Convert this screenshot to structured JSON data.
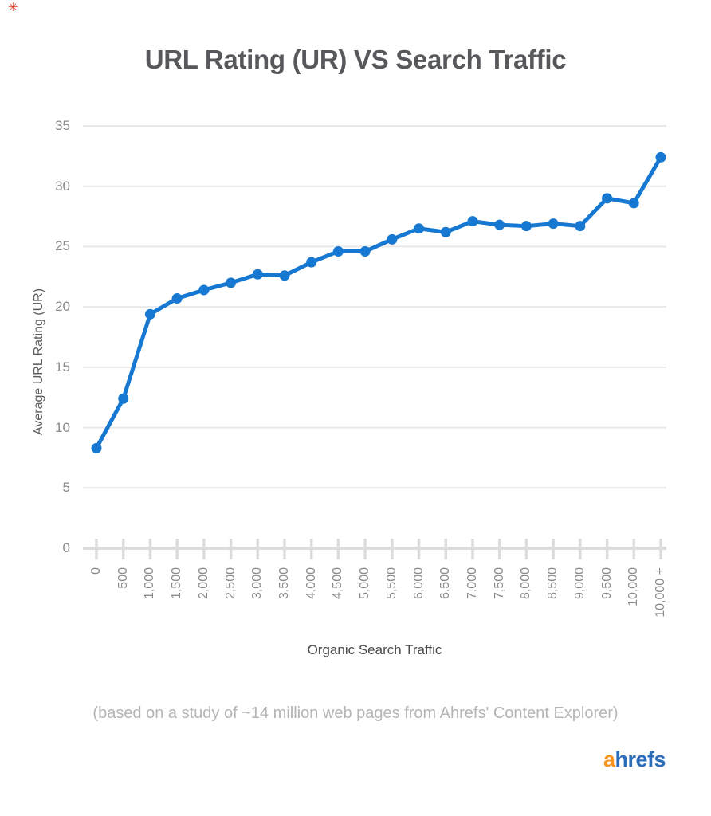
{
  "page": {
    "background": "#ffffff"
  },
  "annotation_mark": {
    "glyph": "✳",
    "color": "#e2321e"
  },
  "chart_data": {
    "type": "line",
    "title": "URL Rating (UR) VS Search Traffic",
    "xlabel": "Organic Search Traffic",
    "ylabel": "Average URL Rating (UR)",
    "caption": "(based on a study of ~14 million web pages from Ahrefs' Content Explorer)",
    "categories": [
      "0",
      "500",
      "1,000",
      "1,500",
      "2,000",
      "2,500",
      "3,000",
      "3,500",
      "4,000",
      "4,500",
      "5,000",
      "5,500",
      "6,000",
      "6,500",
      "7,000",
      "7,500",
      "8,000",
      "8,500",
      "9,000",
      "9,500",
      "10,000",
      "10,000 +"
    ],
    "values": [
      8.3,
      12.4,
      19.4,
      20.7,
      21.4,
      22.0,
      22.7,
      22.6,
      23.7,
      24.6,
      24.6,
      25.6,
      26.5,
      26.2,
      27.1,
      26.8,
      26.7,
      26.9,
      26.7,
      29.0,
      28.6,
      32.4
    ],
    "yticks": [
      0,
      5,
      10,
      15,
      20,
      25,
      30,
      35
    ],
    "ylim": [
      0,
      35
    ],
    "grid": true,
    "legend": false,
    "marker": "circle",
    "colors": {
      "line": "#1778d2",
      "point": "#1778d2",
      "grid": "#e9e9e9",
      "axis": "#dcdcdc",
      "tick_label": "#8a8a8a",
      "title": "#57585c",
      "axis_label": "#4a4a4a",
      "y_axis_label": "#5d5d5d",
      "caption": "#b5b5b5"
    }
  },
  "logo": {
    "prefix": "a",
    "rest": "hrefs",
    "prefix_color": "#f7941e",
    "rest_color": "#2b6db8"
  }
}
